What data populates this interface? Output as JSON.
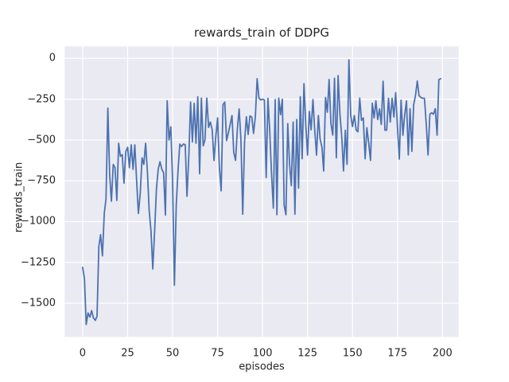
{
  "figure": {
    "background": "#ffffff"
  },
  "chart_data": {
    "type": "line",
    "title": "rewards_train of DDPG",
    "xlabel": "episodes",
    "ylabel": "rewards_train",
    "style": "seaborn-darkgrid",
    "grid": true,
    "legend_position": "none",
    "axes_background": "#eaeaf2",
    "grid_color": "#ffffff",
    "line_color": "#4c72b0",
    "text_color": "#262626",
    "xlim": [
      -10,
      209
    ],
    "ylim": [
      -1706,
      73
    ],
    "xticks": [
      0,
      25,
      50,
      75,
      100,
      125,
      150,
      175,
      200
    ],
    "xtick_labels": [
      "0",
      "25",
      "50",
      "75",
      "100",
      "125",
      "150",
      "175",
      "200"
    ],
    "yticks": [
      0,
      -250,
      -500,
      -750,
      -1000,
      -1250,
      -1500
    ],
    "ytick_labels": [
      "0",
      "−250",
      "−500",
      "−750",
      "−1000",
      "−1250",
      "−1500"
    ],
    "series": [
      {
        "name": "rewards_train",
        "x_start": 0,
        "x_step": 1,
        "values": [
          -1280,
          -1350,
          -1630,
          -1560,
          -1585,
          -1545,
          -1590,
          -1605,
          -1580,
          -1150,
          -1080,
          -1210,
          -950,
          -860,
          -305,
          -715,
          -875,
          -650,
          -670,
          -870,
          -520,
          -600,
          -590,
          -765,
          -570,
          -545,
          -670,
          -530,
          -680,
          -530,
          -750,
          -950,
          -830,
          -610,
          -650,
          -520,
          -700,
          -934,
          -1060,
          -1290,
          -1060,
          -800,
          -680,
          -633,
          -680,
          -700,
          -960,
          -260,
          -500,
          -420,
          -750,
          -1390,
          -900,
          -690,
          -525,
          -540,
          -525,
          -530,
          -845,
          -600,
          -268,
          -512,
          -276,
          -520,
          -236,
          -707,
          -244,
          -536,
          -500,
          -244,
          -423,
          -390,
          -438,
          -626,
          -480,
          -365,
          -666,
          -812,
          -284,
          -268,
          -504,
          -455,
          -406,
          -350,
          -575,
          -625,
          -430,
          -310,
          -505,
          -955,
          -510,
          -358,
          -466,
          -353,
          -360,
          -460,
          -355,
          -125,
          -245,
          -255,
          -250,
          -255,
          -730,
          -245,
          -450,
          -707,
          -918,
          -252,
          -958,
          -244,
          -345,
          -250,
          -900,
          -958,
          -400,
          -650,
          -780,
          -390,
          -955,
          -375,
          -795,
          -235,
          -615,
          -155,
          -400,
          -593,
          -325,
          -438,
          -252,
          -438,
          -593,
          -350,
          -495,
          -544,
          -690,
          -240,
          -330,
          -130,
          -400,
          -470,
          -122,
          -609,
          -106,
          -340,
          -479,
          -690,
          -440,
          -650,
          -10,
          -350,
          -418,
          -350,
          -438,
          -450,
          -244,
          -380,
          -365,
          -615,
          -425,
          -520,
          -625,
          -275,
          -365,
          -260,
          -375,
          -310,
          -405,
          -140,
          -440,
          -440,
          -245,
          -390,
          -245,
          -360,
          -210,
          -425,
          -617,
          -256,
          -471,
          -349,
          -261,
          -592,
          -309,
          -570,
          -285,
          -228,
          -139,
          -228,
          -240,
          -245,
          -245,
          -406,
          -592,
          -342,
          -334,
          -342,
          -309,
          -471,
          -130,
          -125
        ]
      }
    ]
  }
}
